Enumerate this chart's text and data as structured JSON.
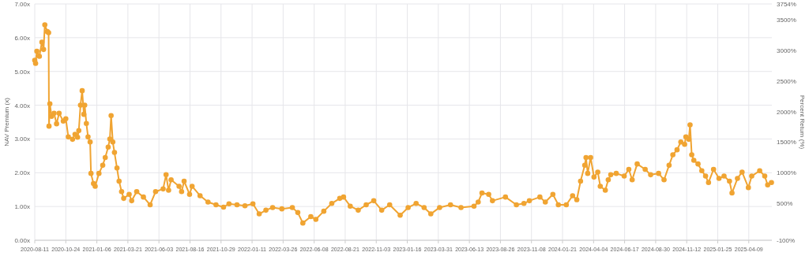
{
  "chart_data": {
    "type": "line",
    "xlabel": null,
    "ylabel": "NAV Premium (x)",
    "y2label": "Percent Return (%)",
    "marker": "circle",
    "line_style": "solid",
    "grid": true,
    "xlim": [
      "2020-08-11",
      "2025-06-03"
    ],
    "xticks": [
      "2020-08-11",
      "2020-10-24",
      "2021-01-06",
      "2021-03-21",
      "2021-06-03",
      "2021-08-16",
      "2021-10-29",
      "2022-01-11",
      "2022-03-26",
      "2022-06-08",
      "2022-08-21",
      "2022-11-03",
      "2023-01-16",
      "2023-03-31",
      "2023-06-13",
      "2023-08-26",
      "2023-11-08",
      "2024-01-21",
      "2024-04-04",
      "2024-06-17",
      "2024-08-30",
      "2024-11-12",
      "2025-01-25",
      "2025-04-09"
    ],
    "ylim": [
      0,
      7
    ],
    "yticks": [
      {
        "value": 0,
        "label": "0.00x"
      },
      {
        "value": 1,
        "label": "1.00x"
      },
      {
        "value": 2,
        "label": "2.00x"
      },
      {
        "value": 3,
        "label": "3.00x"
      },
      {
        "value": 4,
        "label": "4.00x"
      },
      {
        "value": 5,
        "label": "5.00x"
      },
      {
        "value": 6,
        "label": "6.00x"
      },
      {
        "value": 7,
        "label": "7.00x"
      }
    ],
    "y2lim": [
      -100,
      3754
    ],
    "y2ticks": [
      {
        "value": -100,
        "label": "-100%"
      },
      {
        "value": 500,
        "label": "500%"
      },
      {
        "value": 1000,
        "label": "1000%"
      },
      {
        "value": 1500,
        "label": "1500%"
      },
      {
        "value": 2000,
        "label": "2000%"
      },
      {
        "value": 2500,
        "label": "2500%"
      },
      {
        "value": 3000,
        "label": "3000%"
      },
      {
        "value": 3500,
        "label": "3500%"
      },
      {
        "value": 3754,
        "label": "3754%"
      }
    ],
    "series": [
      {
        "color": "#f0a432",
        "x": [
          "2020-08-11",
          "2020-08-13",
          "2020-08-16",
          "2020-08-22",
          "2020-08-28",
          "2020-09-01",
          "2020-09-04",
          "2020-09-10",
          "2020-09-13",
          "2020-09-14",
          "2020-09-16",
          "2020-09-20",
          "2020-09-26",
          "2020-10-02",
          "2020-10-08",
          "2020-10-18",
          "2020-10-24",
          "2020-10-30",
          "2020-11-09",
          "2020-11-15",
          "2020-11-21",
          "2020-11-24",
          "2020-11-28",
          "2020-12-02",
          "2020-12-06",
          "2020-12-08",
          "2020-12-12",
          "2020-12-16",
          "2020-12-21",
          "2020-12-23",
          "2020-12-29",
          "2021-01-02",
          "2021-01-11",
          "2021-01-20",
          "2021-01-26",
          "2021-02-02",
          "2021-02-06",
          "2021-02-09",
          "2021-02-13",
          "2021-02-17",
          "2021-02-23",
          "2021-02-28",
          "2021-03-06",
          "2021-03-11",
          "2021-03-24",
          "2021-03-30",
          "2021-04-11",
          "2021-04-27",
          "2021-05-13",
          "2021-05-26",
          "2021-06-13",
          "2021-06-20",
          "2021-06-26",
          "2021-07-02",
          "2021-07-21",
          "2021-07-27",
          "2021-08-02",
          "2021-08-15",
          "2021-08-21",
          "2021-09-09",
          "2021-09-28",
          "2021-10-17",
          "2021-11-04",
          "2021-11-17",
          "2021-12-06",
          "2021-12-25",
          "2022-01-13",
          "2022-01-28",
          "2022-02-13",
          "2022-03-01",
          "2022-03-23",
          "2022-04-17",
          "2022-04-30",
          "2022-05-12",
          "2022-05-31",
          "2022-06-12",
          "2022-07-01",
          "2022-07-20",
          "2022-08-08",
          "2022-08-17",
          "2022-09-02",
          "2022-09-21",
          "2022-10-10",
          "2022-10-28",
          "2022-11-16",
          "2022-12-05",
          "2022-12-30",
          "2023-01-18",
          "2023-02-06",
          "2023-02-25",
          "2023-03-13",
          "2023-04-03",
          "2023-04-29",
          "2023-05-24",
          "2023-06-24",
          "2023-07-04",
          "2023-07-13",
          "2023-07-29",
          "2023-08-07",
          "2023-09-07",
          "2023-10-03",
          "2023-10-21",
          "2023-11-03",
          "2023-11-28",
          "2023-12-11",
          "2023-12-29",
          "2024-01-11",
          "2024-01-30",
          "2024-02-14",
          "2024-02-24",
          "2024-03-04",
          "2024-03-14",
          "2024-03-17",
          "2024-03-21",
          "2024-03-28",
          "2024-04-05",
          "2024-04-14",
          "2024-04-20",
          "2024-05-02",
          "2024-05-09",
          "2024-05-15",
          "2024-05-28",
          "2024-06-16",
          "2024-06-27",
          "2024-07-05",
          "2024-07-17",
          "2024-08-05",
          "2024-08-18",
          "2024-09-06",
          "2024-09-19",
          "2024-10-01",
          "2024-10-10",
          "2024-10-20",
          "2024-10-29",
          "2024-11-07",
          "2024-11-10",
          "2024-11-17",
          "2024-11-20",
          "2024-11-24",
          "2024-11-29",
          "2024-12-09",
          "2024-12-18",
          "2024-12-27",
          "2025-01-03",
          "2025-01-15",
          "2025-01-28",
          "2025-02-09",
          "2025-02-22",
          "2025-02-28",
          "2025-03-13",
          "2025-03-24",
          "2025-04-08",
          "2025-04-16",
          "2025-05-05",
          "2025-05-17",
          "2025-05-24",
          "2025-06-02"
        ],
        "values": [
          5.33,
          5.24,
          5.6,
          5.45,
          5.87,
          5.65,
          6.38,
          6.18,
          6.15,
          3.38,
          4.04,
          3.67,
          3.76,
          3.45,
          3.76,
          3.53,
          3.6,
          3.06,
          2.99,
          3.14,
          3.05,
          3.25,
          4.0,
          4.43,
          3.73,
          4.0,
          3.46,
          3.06,
          2.91,
          1.98,
          1.68,
          1.6,
          1.98,
          2.22,
          2.45,
          2.76,
          3.0,
          3.69,
          2.91,
          2.6,
          2.14,
          1.75,
          1.44,
          1.24,
          1.36,
          1.17,
          1.44,
          1.28,
          1.05,
          1.44,
          1.52,
          1.94,
          1.48,
          1.79,
          1.6,
          1.44,
          1.75,
          1.36,
          1.6,
          1.32,
          1.13,
          1.05,
          0.98,
          1.08,
          1.05,
          1.02,
          1.08,
          0.78,
          0.89,
          0.97,
          0.93,
          0.97,
          0.82,
          0.51,
          0.7,
          0.62,
          0.86,
          1.09,
          1.24,
          1.28,
          1.01,
          0.89,
          1.05,
          1.17,
          0.89,
          1.05,
          0.74,
          0.97,
          1.09,
          0.97,
          0.78,
          0.97,
          1.05,
          0.97,
          1.01,
          1.13,
          1.4,
          1.36,
          1.17,
          1.28,
          1.05,
          1.09,
          1.17,
          1.28,
          1.13,
          1.36,
          1.05,
          1.05,
          1.32,
          1.2,
          1.75,
          2.22,
          2.45,
          1.98,
          2.45,
          1.87,
          2.02,
          1.6,
          1.48,
          1.79,
          1.94,
          1.98,
          1.9,
          2.1,
          1.79,
          2.26,
          2.1,
          1.94,
          1.98,
          1.79,
          2.22,
          2.53,
          2.68,
          2.91,
          2.84,
          3.06,
          2.99,
          3.42,
          2.53,
          2.37,
          2.26,
          2.06,
          1.9,
          1.71,
          2.1,
          1.83,
          1.9,
          1.75,
          1.4,
          1.83,
          2.02,
          1.56,
          1.9,
          2.06,
          1.9,
          1.64,
          1.71
        ]
      }
    ]
  }
}
